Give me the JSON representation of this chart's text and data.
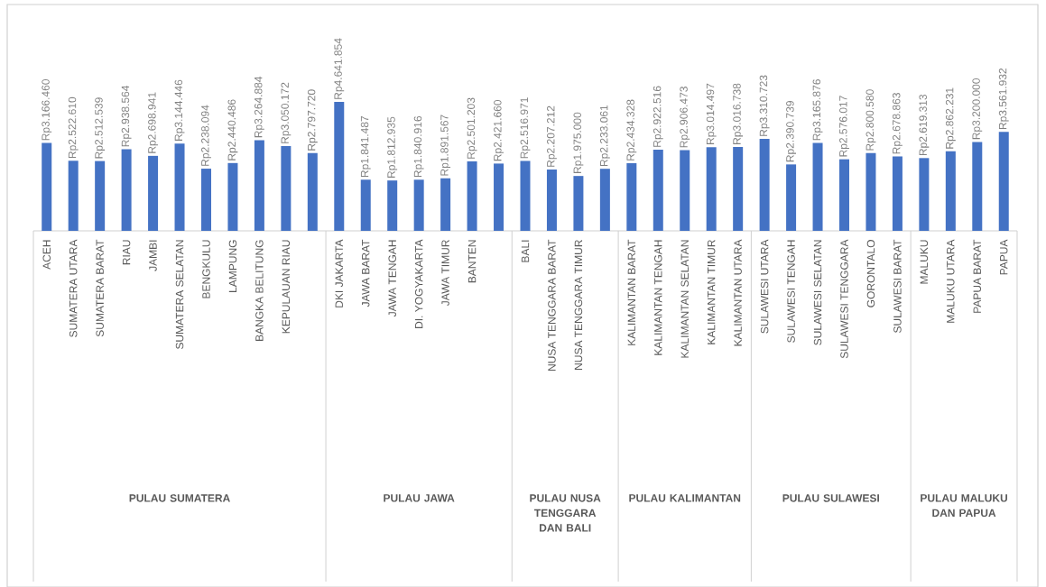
{
  "chart_data": {
    "type": "bar",
    "categories": [
      "ACEH",
      "SUMATERA UTARA",
      "SUMATERA BARAT",
      "RIAU",
      "JAMBI",
      "SUMATERA SELATAN",
      "BENGKULU",
      "LAMPUNG",
      "BANGKA BELITUNG",
      "KEPULAUAN RIAU",
      null,
      "DKI JAKARTA",
      "JAWA BARAT",
      "JAWA TENGAH",
      "DI. YOGYAKARTA",
      "JAWA TIMUR",
      "BANTEN",
      null,
      "BALI",
      "NUSA TENGGARA BARAT",
      "NUSA TENGGARA TIMUR",
      null,
      "KALIMANTAN BARAT",
      "KALIMANTAN TENGAH",
      "KALIMANTAN SELATAN",
      "KALIMANTAN TIMUR",
      "KALIMANTAN UTARA",
      "SULAWESI UTARA",
      "SULAWESI TENGAH",
      "SULAWESI SELATAN",
      "SULAWESI TENGGARA",
      "GORONTALO",
      "SULAWESI BARAT",
      "MALUKU",
      "MALUKU UTARA",
      "PAPUA BARAT",
      "PAPUA"
    ],
    "values": [
      3166460,
      2522610,
      2512539,
      2938564,
      2698941,
      3144446,
      2238094,
      2440486,
      3264884,
      3050172,
      2797720,
      4641854,
      1841487,
      1812935,
      1840916,
      1891567,
      2501203,
      2421660,
      2516971,
      2207212,
      1975000,
      2233061,
      2434328,
      2922516,
      2906473,
      3014497,
      3016738,
      3310723,
      2390739,
      3165876,
      2576017,
      2800580,
      2678863,
      2619313,
      2862231,
      3200000,
      3561932
    ],
    "value_labels": [
      "Rp3.166.460",
      "Rp2.522.610",
      "Rp2.512.539",
      "Rp2.938.564",
      "Rp2.698.941",
      "Rp3.144.446",
      "Rp2.238.094",
      "Rp2.440.486",
      "Rp3.264.884",
      "Rp3.050.172",
      "Rp2.797.720",
      "Rp4.641.854",
      "Rp1.841.487",
      "Rp1.812.935",
      "Rp1.840.916",
      "Rp1.891.567",
      "Rp2.501.203",
      "Rp2.421.660",
      "Rp2.516.971",
      "Rp2.207.212",
      "Rp1.975.000",
      "Rp2.233.061",
      "Rp2.434.328",
      "Rp2.922.516",
      "Rp2.906.473",
      "Rp3.014.497",
      "Rp3.016.738",
      "Rp3.310.723",
      "Rp2.390.739",
      "Rp3.165.876",
      "Rp2.576.017",
      "Rp2.800.580",
      "Rp2.678.863",
      "Rp2.619.313",
      "Rp2.862.231",
      "Rp3.200.000",
      "Rp3.561.932"
    ],
    "color": "#4472c4",
    "annotations": [
      "PULAU SUMATERA",
      "PULAU JAWA",
      "PULAU NUSA TENGGARA DAN BALI",
      "PULAU KALIMANTAN",
      "PULAU SULAWESI",
      "PULAU MALUKU DAN PAPUA"
    ]
  }
}
